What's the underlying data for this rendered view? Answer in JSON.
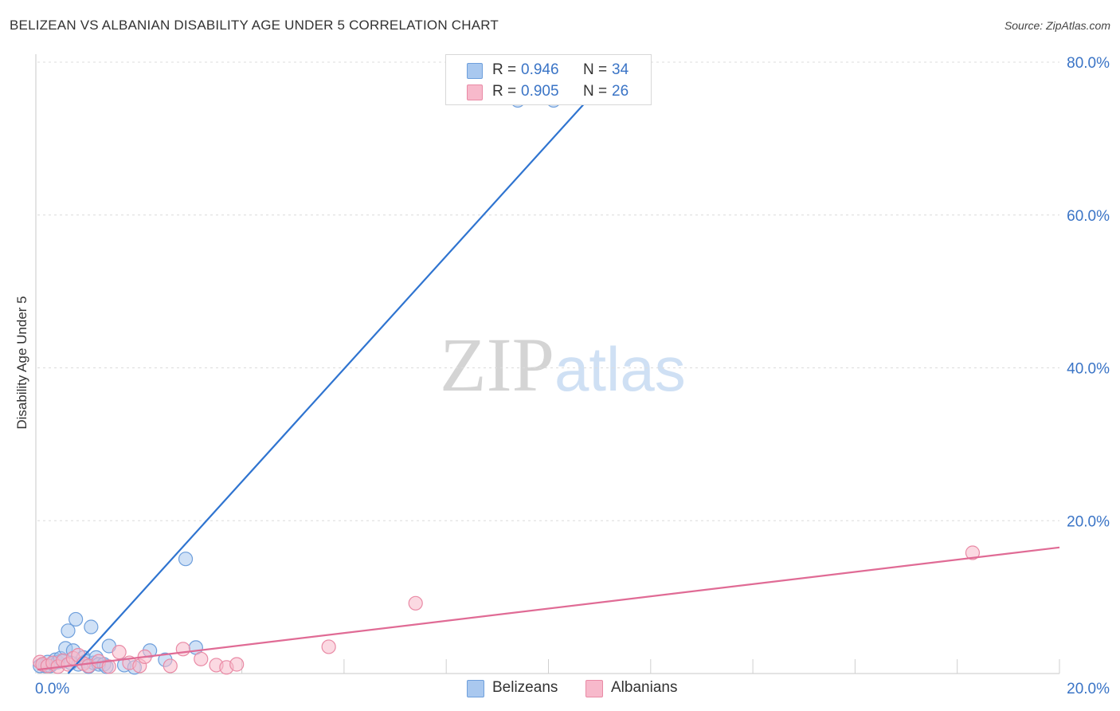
{
  "title": "BELIZEAN VS ALBANIAN DISABILITY AGE UNDER 5 CORRELATION CHART",
  "source": "Source: ZipAtlas.com",
  "watermark": {
    "zip": "ZIP",
    "atlas": "atlas"
  },
  "legend_top": [
    {
      "r_label": "R =",
      "r_value": "0.946",
      "n_label": "N =",
      "n_value": "34",
      "color": "#a9c8ef",
      "border": "#6e9fdc"
    },
    {
      "r_label": "R =",
      "r_value": "0.905",
      "n_label": "N =",
      "n_value": "26",
      "color": "#f7b9cb",
      "border": "#e98aa5"
    }
  ],
  "legend_bottom": [
    {
      "label": "Belizeans",
      "color": "#a9c8ef",
      "border": "#6e9fdc"
    },
    {
      "label": "Albanians",
      "color": "#f7b9cb",
      "border": "#e98aa5"
    }
  ],
  "chart_data": {
    "type": "scatter",
    "title": "BELIZEAN VS ALBANIAN DISABILITY AGE UNDER 5 CORRELATION CHART",
    "xlabel": "",
    "ylabel": "Disability Age Under 5",
    "xlim": [
      0,
      20
    ],
    "ylim": [
      0,
      80
    ],
    "x_tick_labels": [
      {
        "value": 0,
        "label": "0.0%"
      },
      {
        "value": 20,
        "label": "20.0%"
      }
    ],
    "y_tick_labels": [
      {
        "value": 20,
        "label": "20.0%"
      },
      {
        "value": 40,
        "label": "40.0%"
      },
      {
        "value": 60,
        "label": "60.0%"
      },
      {
        "value": 80,
        "label": "80.0%"
      }
    ],
    "grid": true,
    "legend_position": "top-center",
    "series": [
      {
        "name": "Belizeans",
        "color": "#6e9fdc",
        "fill": "#a9c8ef",
        "line_color": "#2f74d0",
        "r": 0.946,
        "n": 34,
        "trend": {
          "x1": 0.6,
          "y1": 0.0,
          "x2": 11.3,
          "y2": 79.0
        },
        "points": [
          [
            0.1,
            1.2
          ],
          [
            0.15,
            1.0
          ],
          [
            0.2,
            1.5
          ],
          [
            0.25,
            1.0
          ],
          [
            0.3,
            1.3
          ],
          [
            0.35,
            1.8
          ],
          [
            0.4,
            1.5
          ],
          [
            0.45,
            2.0
          ],
          [
            0.5,
            1.6
          ],
          [
            0.55,
            3.3
          ],
          [
            0.6,
            5.6
          ],
          [
            0.7,
            3.0
          ],
          [
            0.75,
            7.1
          ],
          [
            0.8,
            1.2
          ],
          [
            0.9,
            2.1
          ],
          [
            0.95,
            1.6
          ],
          [
            1.0,
            0.9
          ],
          [
            1.05,
            6.1
          ],
          [
            1.1,
            1.4
          ],
          [
            1.15,
            2.1
          ],
          [
            1.2,
            1.2
          ],
          [
            1.3,
            1.2
          ],
          [
            1.35,
            0.9
          ],
          [
            1.4,
            3.6
          ],
          [
            1.7,
            1.1
          ],
          [
            1.9,
            0.8
          ],
          [
            2.2,
            3.0
          ],
          [
            2.5,
            1.8
          ],
          [
            2.9,
            15.0
          ],
          [
            3.1,
            3.4
          ],
          [
            9.4,
            75.0
          ],
          [
            10.1,
            75.0
          ],
          [
            0.05,
            1.0
          ],
          [
            0.65,
            1.4
          ]
        ]
      },
      {
        "name": "Albanians",
        "color": "#e98aa5",
        "fill": "#f7b9cb",
        "line_color": "#e06b95",
        "r": 0.905,
        "n": 26,
        "trend": {
          "x1": 0.0,
          "y1": 0.5,
          "x2": 20.0,
          "y2": 16.5
        },
        "points": [
          [
            0.05,
            1.5
          ],
          [
            0.1,
            1.2
          ],
          [
            0.2,
            1.0
          ],
          [
            0.3,
            1.4
          ],
          [
            0.4,
            0.9
          ],
          [
            0.5,
            1.7
          ],
          [
            0.6,
            1.2
          ],
          [
            0.7,
            2.0
          ],
          [
            0.8,
            2.4
          ],
          [
            0.9,
            1.3
          ],
          [
            1.0,
            1.0
          ],
          [
            1.2,
            1.6
          ],
          [
            1.4,
            0.9
          ],
          [
            1.6,
            2.8
          ],
          [
            1.8,
            1.4
          ],
          [
            2.0,
            1.0
          ],
          [
            2.1,
            2.2
          ],
          [
            2.6,
            1.0
          ],
          [
            2.85,
            3.2
          ],
          [
            3.2,
            1.9
          ],
          [
            3.5,
            1.1
          ],
          [
            3.7,
            0.8
          ],
          [
            3.9,
            1.2
          ],
          [
            5.7,
            3.5
          ],
          [
            7.4,
            9.2
          ],
          [
            18.3,
            15.8
          ]
        ]
      }
    ]
  }
}
